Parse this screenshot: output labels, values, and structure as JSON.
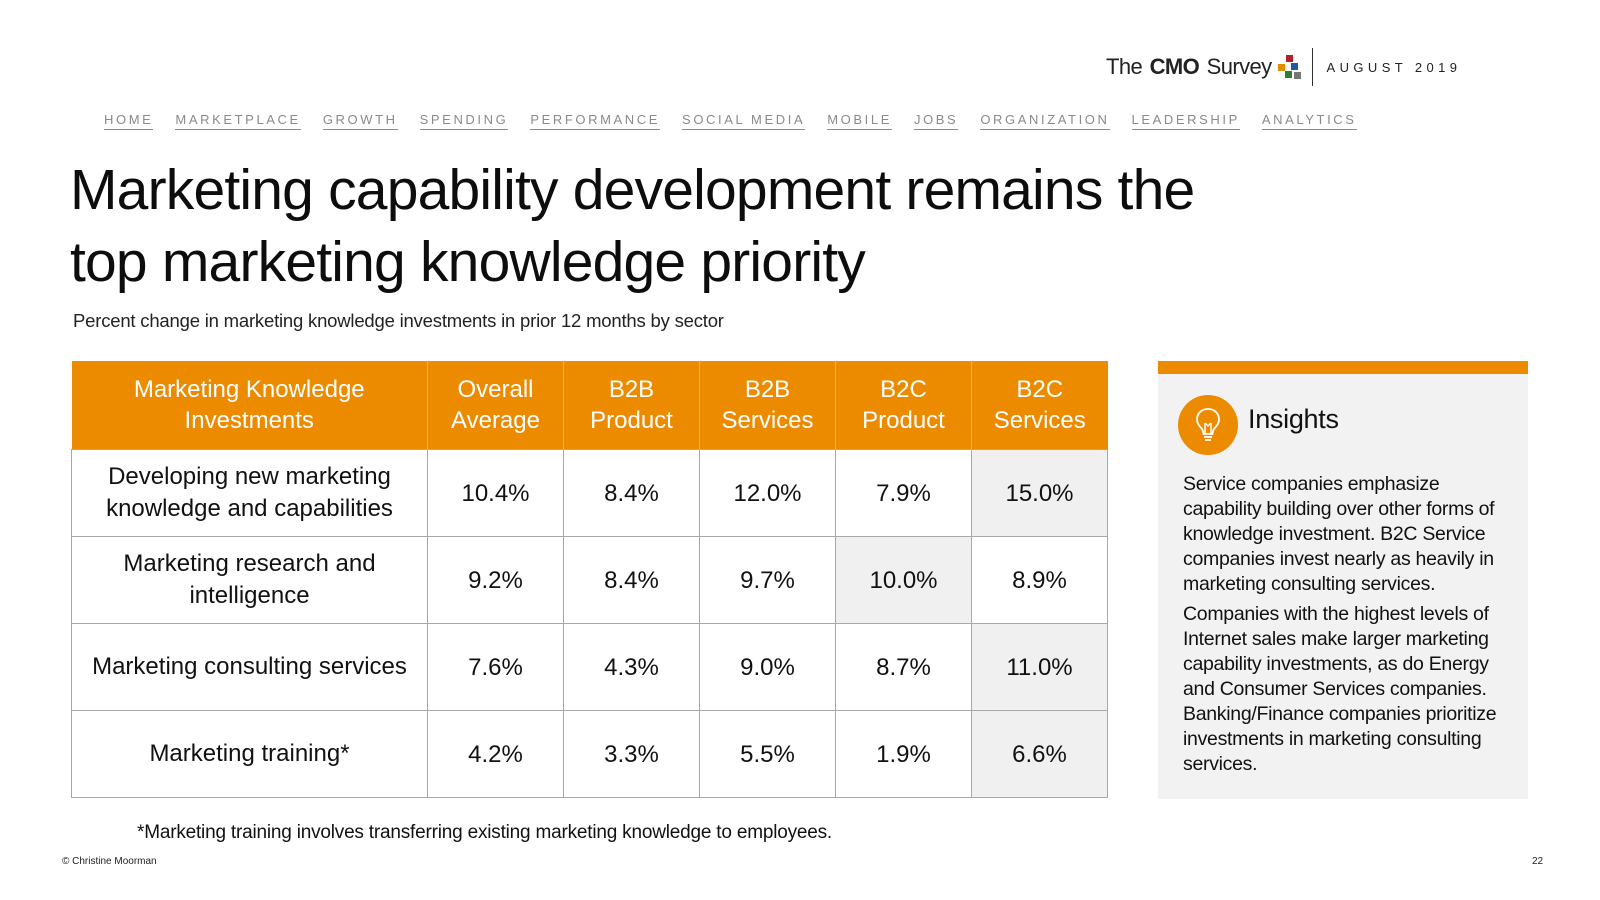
{
  "header": {
    "logo_text": "The CMO Survey",
    "logo_colors": [
      "#b22222",
      "#2e7d32",
      "#e38c00",
      "#1f5aa6",
      "#777777"
    ],
    "date": "AUGUST 2019"
  },
  "nav": [
    "HOME",
    "MARKETPLACE",
    "GROWTH",
    "SPENDING",
    "PERFORMANCE",
    "SOCIAL MEDIA",
    "MOBILE",
    "JOBS",
    "ORGANIZATION",
    "LEADERSHIP",
    "ANALYTICS"
  ],
  "title": "Marketing capability development remains the top marketing knowledge priority",
  "subtitle": "Percent change in marketing knowledge investments in prior 12 months by sector",
  "table": {
    "headers": [
      "Marketing Knowledge Investments",
      "Overall Average",
      "B2B Product",
      "B2B Services",
      "B2C Product",
      "B2C Services"
    ],
    "rows": [
      {
        "label": "Developing new marketing knowledge and capabilities",
        "values": [
          "10.4%",
          "8.4%",
          "12.0%",
          "7.9%",
          "15.0%"
        ],
        "highlight_col": 4
      },
      {
        "label": "Marketing research and intelligence",
        "values": [
          "9.2%",
          "8.4%",
          "9.7%",
          "10.0%",
          "8.9%"
        ],
        "highlight_col": 3
      },
      {
        "label": "Marketing consulting services",
        "values": [
          "7.6%",
          "4.3%",
          "9.0%",
          "8.7%",
          "11.0%"
        ],
        "highlight_col": 4
      },
      {
        "label": "Marketing training*",
        "values": [
          "4.2%",
          "3.3%",
          "5.5%",
          "1.9%",
          "6.6%"
        ],
        "highlight_col": 4
      }
    ]
  },
  "footnote": "*Marketing training involves transferring existing marketing knowledge to employees.",
  "insights": {
    "icon": "lightbulb-icon",
    "title": "Insights",
    "paragraphs": [
      "Service companies emphasize capability building over other forms of knowledge investment. B2C Service companies invest nearly as heavily in marketing consulting services.",
      "Companies with the highest levels of Internet sales make larger marketing capability investments, as do Energy and Consumer Services companies. Banking/Finance companies prioritize investments in marketing consulting services."
    ]
  },
  "footer": {
    "copyright": "© Christine Moorman",
    "page": "22"
  },
  "colors": {
    "accent": "#ec8a00",
    "highlight_cell": "#f0f0f0",
    "panel_bg": "#f2f2f2"
  }
}
